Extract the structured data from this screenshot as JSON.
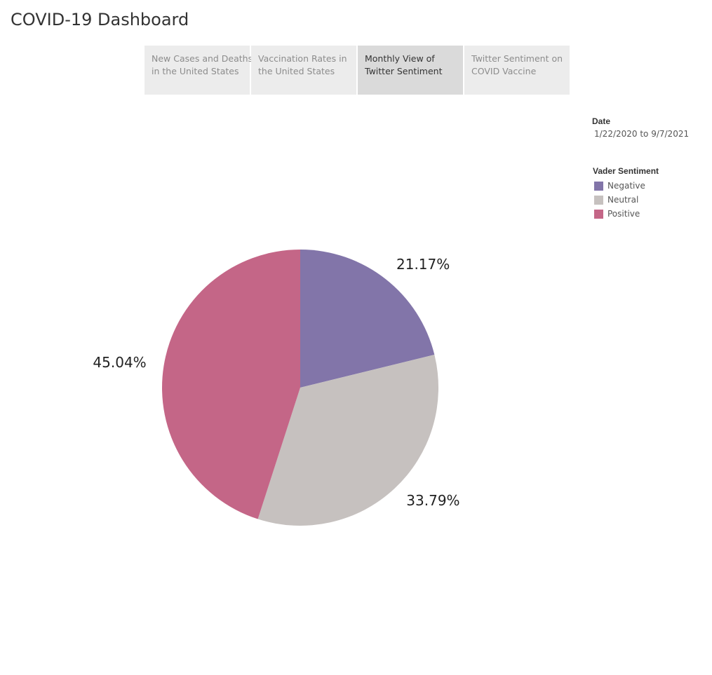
{
  "dashboard": {
    "title": "COVID-19 Dashboard"
  },
  "tabs": [
    {
      "line1": "New Cases and Deaths",
      "line2": "in the United States",
      "active": false
    },
    {
      "line1": "Vaccination Rates in",
      "line2": "the United States",
      "active": false
    },
    {
      "line1": "Monthly View of",
      "line2": "Twitter Sentiment",
      "active": true
    },
    {
      "line1": "Twitter Sentiment on",
      "line2": "COVID Vaccine",
      "active": false
    }
  ],
  "filter": {
    "title": "Date",
    "value": "1/22/2020 to 9/7/2021"
  },
  "legend": {
    "title": "Vader Sentiment",
    "items": [
      {
        "label": "Negative",
        "color": "#8275a9"
      },
      {
        "label": "Neutral",
        "color": "#c6c1bf"
      },
      {
        "label": "Positive",
        "color": "#c46687"
      }
    ]
  },
  "chart_data": {
    "type": "pie",
    "categories": [
      "Negative",
      "Neutral",
      "Positive"
    ],
    "values": [
      21.17,
      33.79,
      45.04
    ],
    "data_labels": [
      "21.17%",
      "33.79%",
      "45.04%"
    ],
    "colors": [
      "#8275a9",
      "#c6c1bf",
      "#c46687"
    ],
    "start_angle": "12 o'clock, clockwise",
    "legend": "right"
  }
}
